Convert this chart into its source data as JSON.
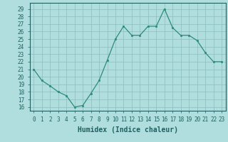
{
  "x": [
    0,
    1,
    2,
    3,
    4,
    5,
    6,
    7,
    8,
    9,
    10,
    11,
    12,
    13,
    14,
    15,
    16,
    17,
    18,
    19,
    20,
    21,
    22,
    23
  ],
  "y": [
    21.0,
    19.5,
    18.8,
    18.0,
    17.5,
    16.0,
    16.2,
    17.8,
    19.5,
    22.2,
    25.0,
    26.7,
    25.5,
    25.5,
    26.7,
    26.7,
    29.0,
    26.5,
    25.5,
    25.5,
    24.8,
    23.2,
    22.0,
    22.0
  ],
  "line_color": "#2e8b7a",
  "marker_color": "#2e8b7a",
  "bg_color": "#b0dede",
  "grid_color": "#8cbcbc",
  "xlabel": "Humidex (Indice chaleur)",
  "text_color": "#206060",
  "ylabel_ticks": [
    16,
    17,
    18,
    19,
    20,
    21,
    22,
    23,
    24,
    25,
    26,
    27,
    28,
    29
  ],
  "ylim": [
    15.5,
    29.8
  ],
  "xlim": [
    -0.5,
    23.5
  ],
  "tick_labels": [
    "0",
    "1",
    "2",
    "3",
    "4",
    "5",
    "6",
    "7",
    "8",
    "9",
    "10",
    "11",
    "12",
    "13",
    "14",
    "15",
    "16",
    "17",
    "18",
    "19",
    "20",
    "21",
    "22",
    "23"
  ]
}
